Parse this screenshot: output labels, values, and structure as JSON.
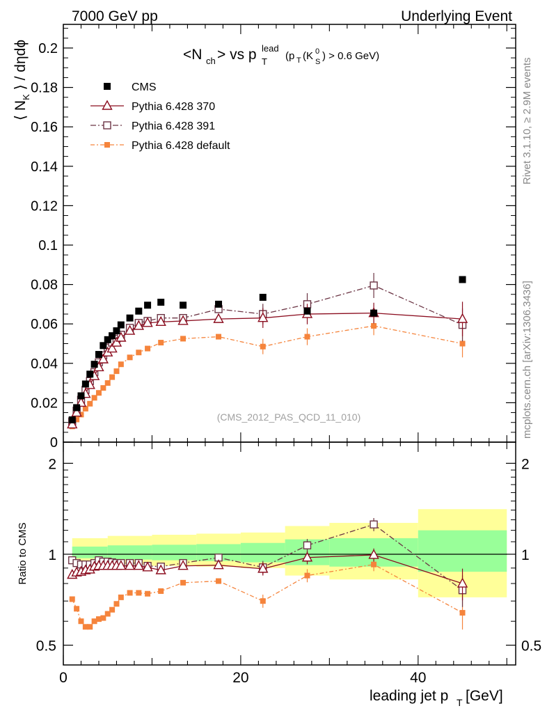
{
  "header": {
    "left": "7000 GeV pp",
    "right": "Underlying Event"
  },
  "side_labels": {
    "rivet": "Rivet 3.1.10, ≥ 2.9M events",
    "mcplots": "mcplots.cern.ch [arXiv:1306.3436]"
  },
  "analysis_label": "(CMS_2012_PAS_QCD_11_010)",
  "colors": {
    "cms": "#000000",
    "p370": "#8b0d1f",
    "p391": "#6b3444",
    "pdef": "#f5843c",
    "band_inner": "#99ff99",
    "band_outer": "#ffff99"
  },
  "chart_data": [
    {
      "type": "scatter",
      "panel": "main",
      "ylabel": "⟨ N_K ⟩ / dηdϕ",
      "xlim": [
        0,
        51
      ],
      "ylim": [
        0,
        0.212
      ],
      "y_ticks": [
        "0",
        "0.02",
        "0.04",
        "0.06",
        "0.08",
        "0.1",
        "0.12",
        "0.14",
        "0.16",
        "0.18",
        "0.2"
      ],
      "legend_position": "top-left",
      "x": [
        1.0,
        1.5,
        2.0,
        2.5,
        3.0,
        3.5,
        4.0,
        4.5,
        5.0,
        5.5,
        6.0,
        6.5,
        7.5,
        8.5,
        9.5,
        11.0,
        13.5,
        17.5,
        22.5,
        27.5,
        35.0,
        45.0
      ],
      "series": [
        {
          "name": "CMS",
          "marker": "filled-square",
          "values": [
            0.0113,
            0.0175,
            0.0235,
            0.0295,
            0.0345,
            0.0395,
            0.0445,
            0.049,
            0.052,
            0.054,
            0.0565,
            0.0595,
            0.063,
            0.0665,
            0.0695,
            0.071,
            0.0695,
            0.07,
            0.0735,
            0.0665,
            0.0655,
            0.0825
          ]
        },
        {
          "name": "Pythia 6.428 370",
          "marker": "open-triangle",
          "values": [
            0.009,
            0.015,
            0.02,
            0.0245,
            0.029,
            0.0335,
            0.038,
            0.042,
            0.0455,
            0.0475,
            0.0505,
            0.053,
            0.0565,
            0.059,
            0.0605,
            0.061,
            0.0615,
            0.0625,
            0.063,
            0.065,
            0.0655,
            0.0625
          ]
        },
        {
          "name": "Pythia 6.428 391",
          "marker": "open-square",
          "values": [
            0.0105,
            0.016,
            0.0215,
            0.0265,
            0.031,
            0.0355,
            0.0405,
            0.044,
            0.048,
            0.0505,
            0.0525,
            0.0545,
            0.058,
            0.0605,
            0.0615,
            0.063,
            0.063,
            0.0675,
            0.065,
            0.07,
            0.0795,
            0.0595
          ]
        },
        {
          "name": "Pythia 6.428 default",
          "marker": "filled-square-small",
          "values": [
            0.008,
            0.0115,
            0.014,
            0.017,
            0.0195,
            0.0225,
            0.025,
            0.0275,
            0.03,
            0.033,
            0.036,
            0.0395,
            0.043,
            0.0455,
            0.0475,
            0.0505,
            0.0525,
            0.0535,
            0.0485,
            0.0535,
            0.059,
            0.05
          ]
        }
      ]
    },
    {
      "type": "scatter",
      "panel": "ratio",
      "ylabel": "Ratio to CMS",
      "xlabel": "leading jet p_T [GeV]",
      "xlim": [
        0,
        51
      ],
      "ylim": [
        0.43,
        2.35
      ],
      "log_y": true,
      "y_ticks": [
        "0.5",
        "1",
        "2"
      ],
      "x_ticks": [
        "0",
        "20",
        "40"
      ],
      "x": [
        1.0,
        1.5,
        2.0,
        2.5,
        3.0,
        3.5,
        4.0,
        4.5,
        5.0,
        5.5,
        6.0,
        6.5,
        7.5,
        8.5,
        9.5,
        11.0,
        13.5,
        17.5,
        22.5,
        27.5,
        35.0,
        45.0
      ],
      "bands": {
        "bins": [
          [
            1,
            5
          ],
          [
            5,
            10
          ],
          [
            10,
            15
          ],
          [
            15,
            20
          ],
          [
            20,
            25
          ],
          [
            25,
            30
          ],
          [
            30,
            40
          ],
          [
            40,
            50
          ]
        ],
        "inner": [
          [
            0.97,
            1.06
          ],
          [
            0.96,
            1.07
          ],
          [
            0.955,
            1.075
          ],
          [
            0.95,
            1.08
          ],
          [
            0.94,
            1.09
          ],
          [
            0.92,
            1.12
          ],
          [
            0.91,
            1.13
          ],
          [
            0.875,
            1.2
          ]
        ],
        "outer": [
          [
            0.93,
            1.13
          ],
          [
            0.925,
            1.15
          ],
          [
            0.915,
            1.16
          ],
          [
            0.91,
            1.17
          ],
          [
            0.9,
            1.18
          ],
          [
            0.85,
            1.24
          ],
          [
            0.825,
            1.27
          ],
          [
            0.72,
            1.41
          ]
        ]
      },
      "series": [
        {
          "name": "Pythia 6.428 370",
          "values": [
            0.855,
            0.87,
            0.875,
            0.885,
            0.89,
            0.91,
            0.915,
            0.915,
            0.915,
            0.915,
            0.915,
            0.915,
            0.915,
            0.915,
            0.905,
            0.885,
            0.915,
            0.92,
            0.895,
            0.975,
            0.995,
            0.8
          ]
        },
        {
          "name": "Pythia 6.428 391",
          "values": [
            0.955,
            0.935,
            0.925,
            0.925,
            0.925,
            0.935,
            0.955,
            0.945,
            0.945,
            0.94,
            0.935,
            0.935,
            0.935,
            0.935,
            0.915,
            0.91,
            0.935,
            0.975,
            0.905,
            1.07,
            1.255,
            0.76
          ]
        },
        {
          "name": "Pythia 6.428 default",
          "values": [
            0.71,
            0.66,
            0.6,
            0.575,
            0.575,
            0.6,
            0.61,
            0.615,
            0.635,
            0.655,
            0.685,
            0.72,
            0.745,
            0.745,
            0.74,
            0.755,
            0.805,
            0.815,
            0.7,
            0.85,
            0.925,
            0.64
          ]
        }
      ]
    }
  ]
}
